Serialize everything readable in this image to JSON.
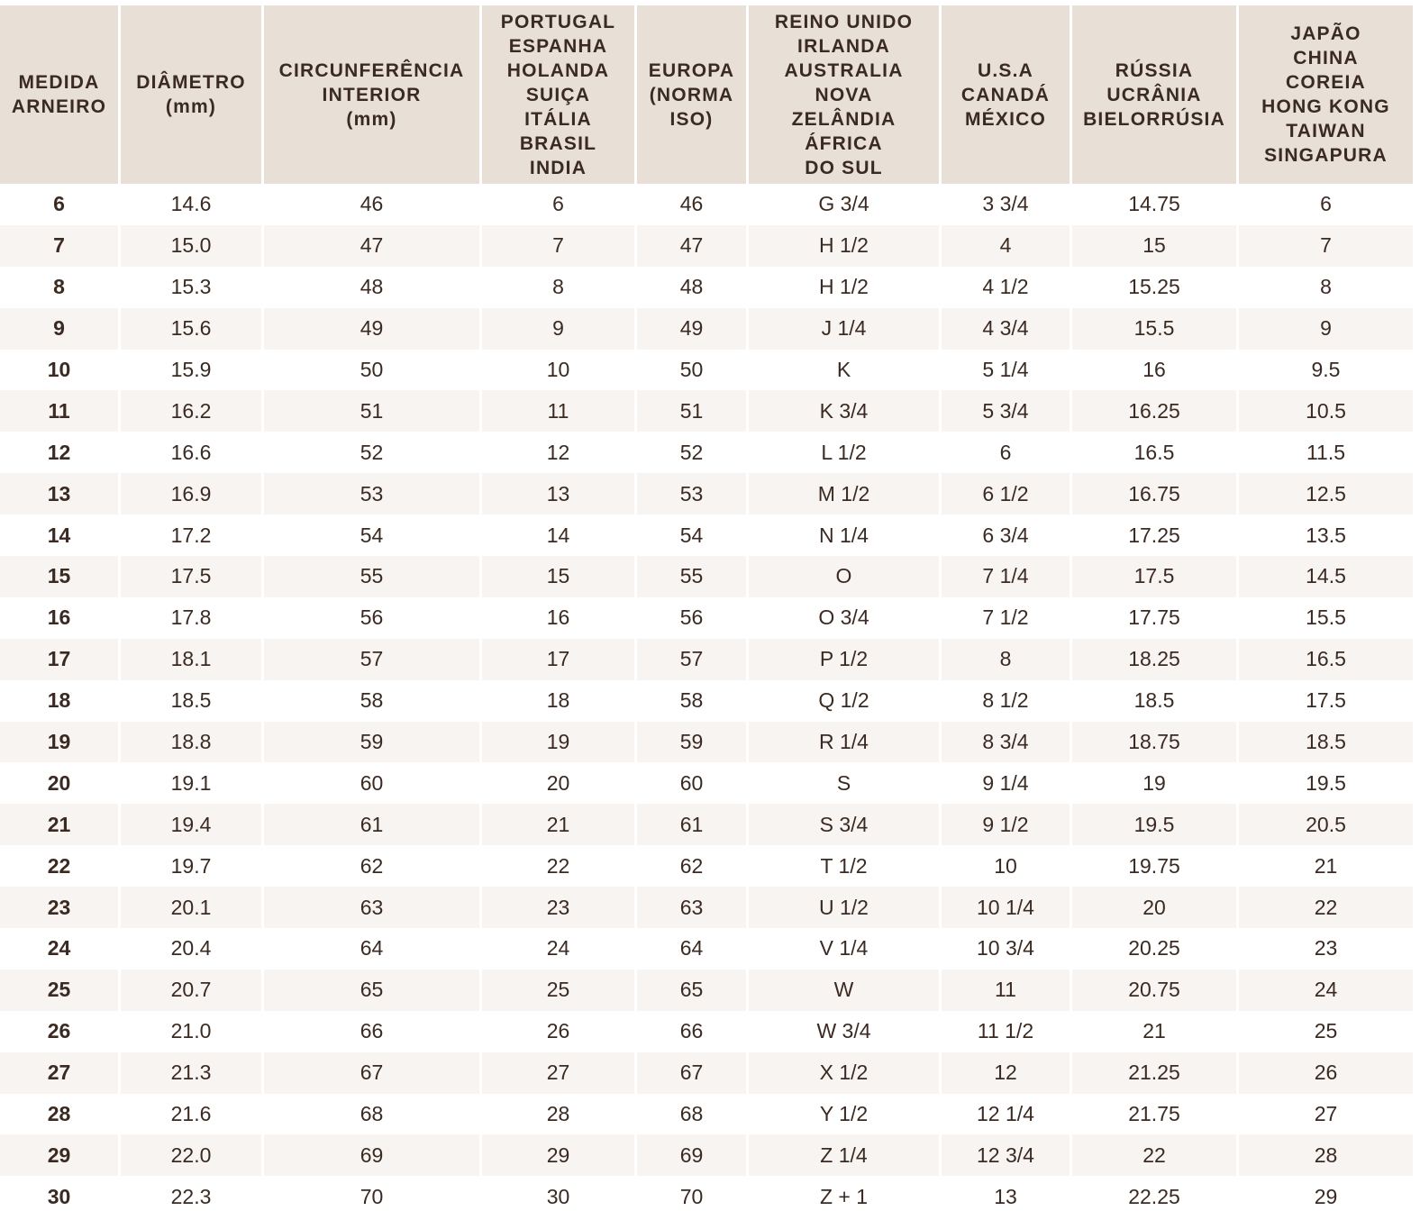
{
  "table": {
    "headers": [
      "MEDIDA\nARNEIRO",
      "DIÂMETRO\n(mm)",
      "CIRCUNFERÊNCIA\nINTERIOR\n(mm)",
      "PORTUGAL\nESPANHA\nHOLANDA\nSUIÇA\nITÁLIA\nBRASIL\nINDIA",
      "EUROPA\n(NORMA\nISO)",
      "REINO UNIDO\nIRLANDA\nAUSTRALIA\nNOVA\nZELÂNDIA\nÁFRICA\nDO SUL",
      "U.S.A\nCANADÁ\nMÉXICO",
      "RÚSSIA\nUCRÂNIA\nBIELORRÚSIA",
      "JAPÃO\nCHINA\nCOREIA\nHONG KONG\nTAIWAN\nSINGAPURA"
    ],
    "rows": [
      [
        "6",
        "14.6",
        "46",
        "6",
        "46",
        "G 3/4",
        "3 3/4",
        "14.75",
        "6"
      ],
      [
        "7",
        "15.0",
        "47",
        "7",
        "47",
        "H 1/2",
        "4",
        "15",
        "7"
      ],
      [
        "8",
        "15.3",
        "48",
        "8",
        "48",
        "H 1/2",
        "4 1/2",
        "15.25",
        "8"
      ],
      [
        "9",
        "15.6",
        "49",
        "9",
        "49",
        "J 1/4",
        "4 3/4",
        "15.5",
        "9"
      ],
      [
        "10",
        "15.9",
        "50",
        "10",
        "50",
        "K",
        "5 1/4",
        "16",
        "9.5"
      ],
      [
        "11",
        "16.2",
        "51",
        "11",
        "51",
        "K 3/4",
        "5 3/4",
        "16.25",
        "10.5"
      ],
      [
        "12",
        "16.6",
        "52",
        "12",
        "52",
        "L 1/2",
        "6",
        "16.5",
        "11.5"
      ],
      [
        "13",
        "16.9",
        "53",
        "13",
        "53",
        "M 1/2",
        "6 1/2",
        "16.75",
        "12.5"
      ],
      [
        "14",
        "17.2",
        "54",
        "14",
        "54",
        "N 1/4",
        "6 3/4",
        "17.25",
        "13.5"
      ],
      [
        "15",
        "17.5",
        "55",
        "15",
        "55",
        "O",
        "7 1/4",
        "17.5",
        "14.5"
      ],
      [
        "16",
        "17.8",
        "56",
        "16",
        "56",
        "O 3/4",
        "7 1/2",
        "17.75",
        "15.5"
      ],
      [
        "17",
        "18.1",
        "57",
        "17",
        "57",
        "P 1/2",
        "8",
        "18.25",
        "16.5"
      ],
      [
        "18",
        "18.5",
        "58",
        "18",
        "58",
        "Q 1/2",
        "8 1/2",
        "18.5",
        "17.5"
      ],
      [
        "19",
        "18.8",
        "59",
        "19",
        "59",
        "R 1/4",
        "8 3/4",
        "18.75",
        "18.5"
      ],
      [
        "20",
        "19.1",
        "60",
        "20",
        "60",
        "S",
        "9 1/4",
        "19",
        "19.5"
      ],
      [
        "21",
        "19.4",
        "61",
        "21",
        "61",
        "S 3/4",
        "9 1/2",
        "19.5",
        "20.5"
      ],
      [
        "22",
        "19.7",
        "62",
        "22",
        "62",
        "T 1/2",
        "10",
        "19.75",
        "21"
      ],
      [
        "23",
        "20.1",
        "63",
        "23",
        "63",
        "U 1/2",
        "10 1/4",
        "20",
        "22"
      ],
      [
        "24",
        "20.4",
        "64",
        "24",
        "64",
        "V 1/4",
        "10 3/4",
        "20.25",
        "23"
      ],
      [
        "25",
        "20.7",
        "65",
        "25",
        "65",
        "W",
        "11",
        "20.75",
        "24"
      ],
      [
        "26",
        "21.0",
        "66",
        "26",
        "66",
        "W 3/4",
        "11 1/2",
        "21",
        "25"
      ],
      [
        "27",
        "21.3",
        "67",
        "27",
        "67",
        "X 1/2",
        "12",
        "21.25",
        "26"
      ],
      [
        "28",
        "21.6",
        "68",
        "28",
        "68",
        "Y 1/2",
        "12 1/4",
        "21.75",
        "27"
      ],
      [
        "29",
        "22.0",
        "69",
        "29",
        "69",
        "Z 1/4",
        "12 3/4",
        "22",
        "28"
      ],
      [
        "30",
        "22.3",
        "70",
        "30",
        "70",
        "Z + 1",
        "13",
        "22.25",
        "29"
      ]
    ]
  },
  "colors": {
    "header_bg": "#e8e0d7",
    "alt_row_bg": "#f8f4f1",
    "text": "#3a2a22"
  }
}
